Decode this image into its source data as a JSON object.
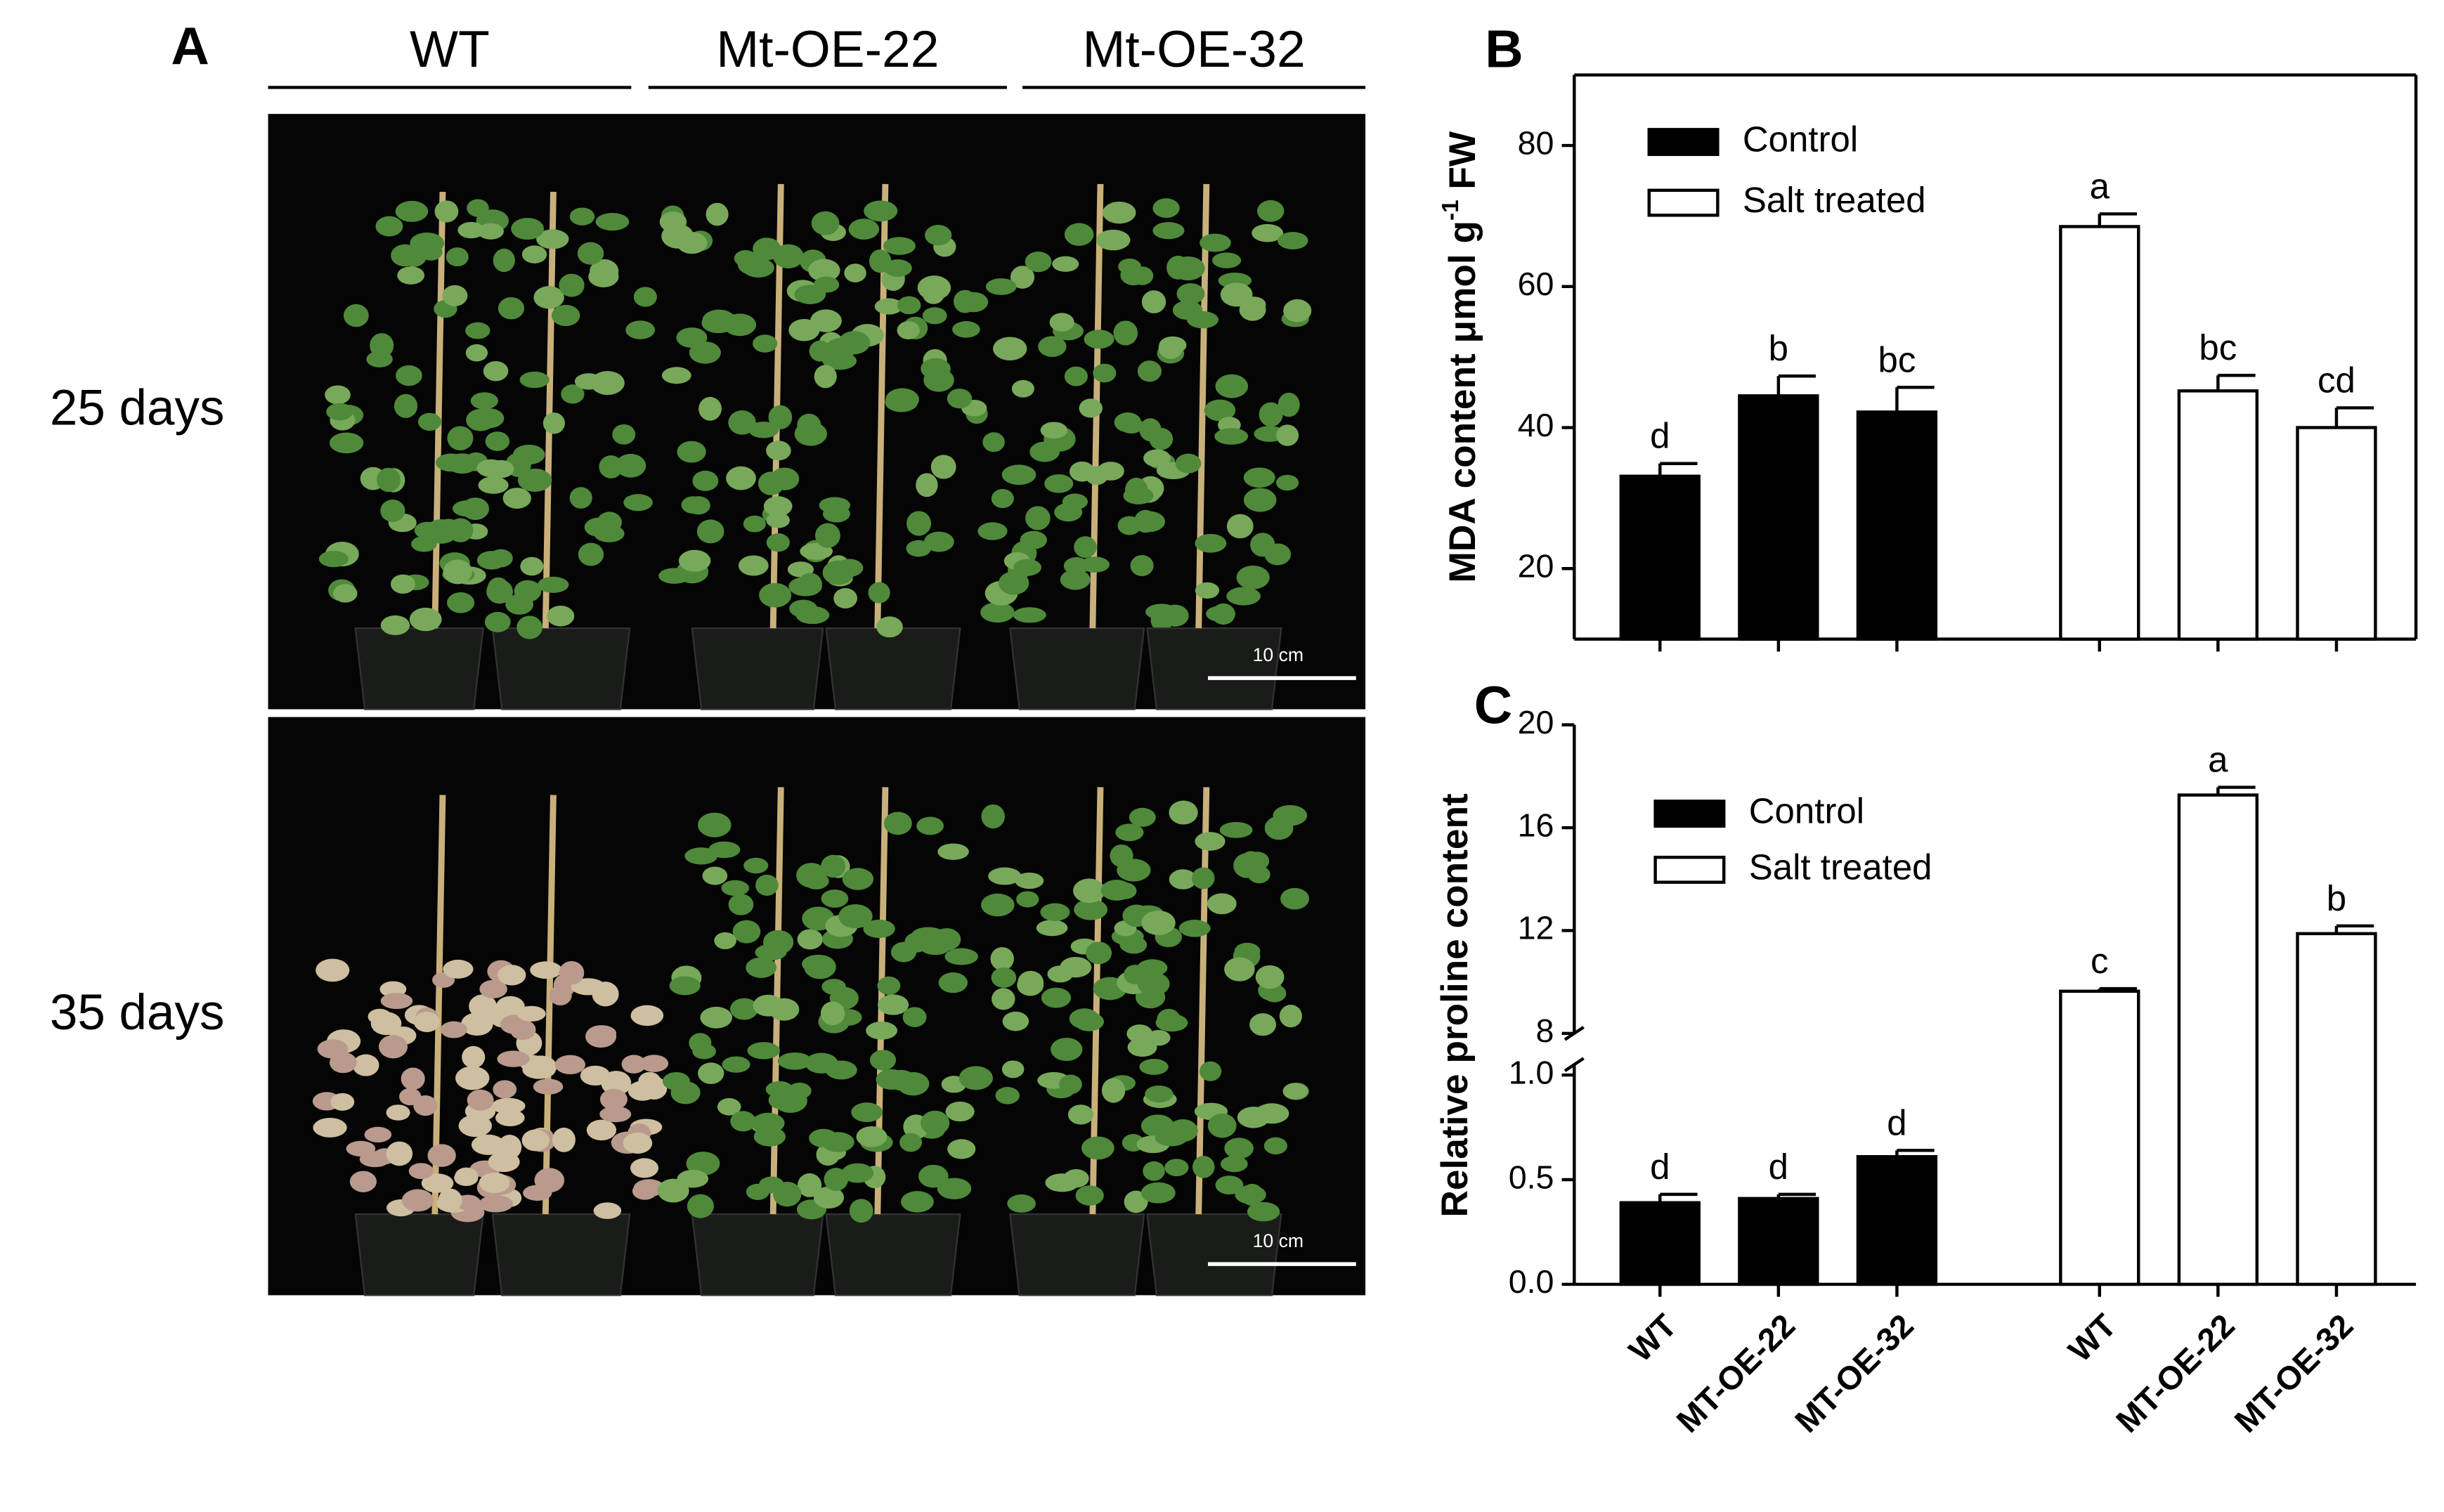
{
  "panel_a": {
    "label": "A",
    "groups": [
      "WT",
      "Mt-OE-22",
      "Mt-OE-32"
    ],
    "rows": [
      "25 days",
      "35 days"
    ],
    "scale_bar": "10 cm"
  },
  "chart_data": [
    {
      "type": "bar",
      "panel": "B",
      "ylabel": "MDA content μmol g",
      "ylabel_sup": "-1",
      "ylabel_end": " FW",
      "ylim": [
        10,
        90
      ],
      "yticks": [
        20,
        40,
        60,
        80
      ],
      "legend": "upper left",
      "series": [
        {
          "name": "Control",
          "color": "#000000",
          "values": [
            33.1,
            44.5,
            42.2,
            null,
            null,
            null
          ],
          "errors": [
            1.8,
            2.8,
            3.5,
            null,
            null,
            null
          ],
          "annotations": [
            "d",
            "b",
            "bc",
            null,
            null,
            null
          ]
        },
        {
          "name": "Salt treated",
          "color": "#ffffff",
          "values": [
            null,
            null,
            null,
            68.5,
            45.2,
            40.0
          ],
          "errors": [
            null,
            null,
            null,
            1.8,
            2.2,
            2.8
          ],
          "annotations": [
            null,
            null,
            null,
            "a",
            "bc",
            "cd"
          ]
        }
      ]
    },
    {
      "type": "bar",
      "panel": "C",
      "ylabel": "Relative proline content",
      "categories": [
        "WT",
        "MT-OE-22",
        "MT-OE-32",
        "WT",
        "MT-OE-22",
        "MT-OE-32"
      ],
      "segments": [
        {
          "ylim": [
            0,
            1.05
          ],
          "yticks": [
            {
              "value": 0,
              "label": "0.0"
            },
            0.5,
            {
              "value": 1,
              "label": "1.0"
            }
          ]
        },
        {
          "ylim": [
            8,
            20
          ],
          "yticks": [
            8,
            12,
            16,
            20
          ]
        }
      ],
      "legend": "upper left",
      "series": [
        {
          "name": "Control",
          "color": "#000000",
          "values": [
            0.39,
            0.41,
            0.61,
            null,
            null,
            null
          ],
          "errors": [
            0.04,
            0.02,
            0.03,
            null,
            null,
            null
          ],
          "annotations": [
            "d",
            "d",
            "d",
            null,
            null,
            null
          ]
        },
        {
          "name": "Salt treated",
          "color": "#ffffff",
          "values": [
            null,
            null,
            null,
            9.64,
            17.27,
            11.88
          ],
          "errors": [
            null,
            null,
            null,
            0.1,
            0.3,
            0.3
          ],
          "annotations": [
            null,
            null,
            null,
            "c",
            "a",
            "b"
          ]
        }
      ]
    }
  ]
}
